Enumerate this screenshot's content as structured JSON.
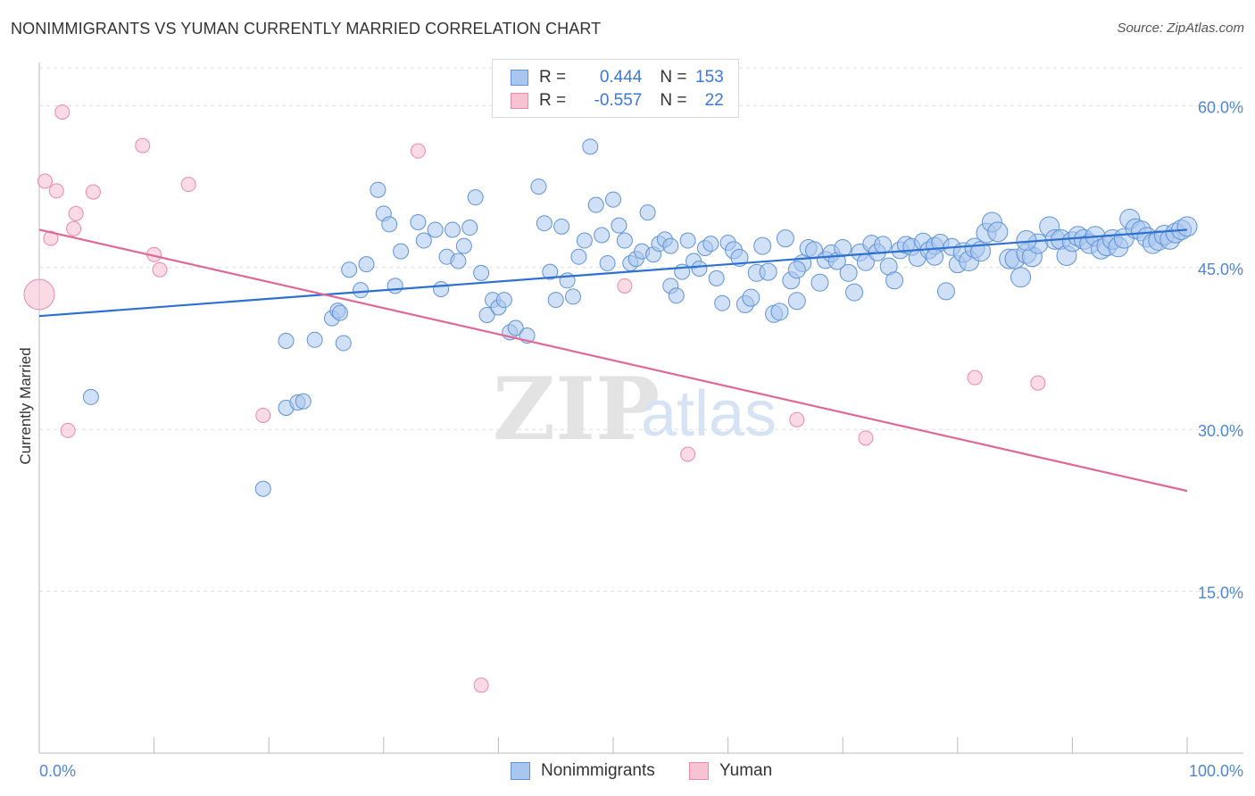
{
  "title": "NONIMMIGRANTS VS YUMAN CURRENTLY MARRIED CORRELATION CHART",
  "source": "Source: ZipAtlas.com",
  "watermark": {
    "zip": "ZIP",
    "atlas": "atlas"
  },
  "legend": {
    "rows": [
      {
        "r_label": "R = ",
        "r_value": "0.444",
        "n_label": "N = ",
        "n_value": "153"
      },
      {
        "r_label": "R = ",
        "r_value": "-0.557",
        "n_label": "N = ",
        "n_value": "22"
      }
    ]
  },
  "bottom_legend": [
    "Nonimmigrants",
    "Yuman"
  ],
  "colors": {
    "blue_fill": "#a9c7ee",
    "blue_stroke": "#5f93d8",
    "blue_line": "#2e70cf",
    "pink_fill": "#f7c3d3",
    "pink_stroke": "#e98aa8",
    "pink_line": "#e06894",
    "tick": "#4f86d6",
    "grid": "#dddddd"
  },
  "chart_data": {
    "type": "scatter",
    "title": "NONIMMIGRANTS VS YUMAN CURRENTLY MARRIED CORRELATION CHART",
    "xlabel": "",
    "ylabel": "Currently Married",
    "xlim": [
      0,
      100
    ],
    "ylim": [
      0,
      64
    ],
    "x_tick_labels": [
      "0.0%",
      "100.0%"
    ],
    "y_ticks": [
      15,
      30,
      45,
      60
    ],
    "y_tick_labels": [
      "15.0%",
      "30.0%",
      "45.0%",
      "60.0%"
    ],
    "grid": true,
    "series": [
      {
        "name": "Nonimmigrants",
        "r": 0.444,
        "n": 153,
        "trend": [
          [
            0,
            40.5
          ],
          [
            100,
            48.5
          ]
        ],
        "points": [
          [
            4.5,
            33.0
          ],
          [
            19.5,
            24.5
          ],
          [
            21.5,
            32.0
          ],
          [
            22.5,
            32.5
          ],
          [
            23.0,
            32.6
          ],
          [
            21.5,
            38.2
          ],
          [
            24.0,
            38.3
          ],
          [
            26.5,
            38.0
          ],
          [
            25.5,
            40.3
          ],
          [
            26.0,
            41.0
          ],
          [
            26.2,
            40.8
          ],
          [
            27.0,
            44.8
          ],
          [
            28.0,
            42.9
          ],
          [
            28.5,
            45.3
          ],
          [
            29.5,
            52.2
          ],
          [
            30.0,
            50.0
          ],
          [
            30.5,
            49.0
          ],
          [
            31.0,
            43.3
          ],
          [
            31.5,
            46.5
          ],
          [
            33.0,
            49.2
          ],
          [
            33.5,
            47.5
          ],
          [
            34.5,
            48.5
          ],
          [
            35.0,
            43.0
          ],
          [
            35.5,
            46.0
          ],
          [
            36.0,
            48.5
          ],
          [
            36.5,
            45.6
          ],
          [
            37.5,
            48.7
          ],
          [
            38.0,
            51.5
          ],
          [
            38.5,
            44.5
          ],
          [
            39.0,
            40.6
          ],
          [
            39.5,
            42.0
          ],
          [
            40.0,
            41.3
          ],
          [
            40.5,
            42.0
          ],
          [
            41.0,
            39.0
          ],
          [
            41.5,
            39.4
          ],
          [
            42.5,
            38.7
          ],
          [
            43.5,
            52.5
          ],
          [
            44.0,
            49.1
          ],
          [
            44.5,
            44.6
          ],
          [
            45.0,
            42.0
          ],
          [
            45.5,
            48.8
          ],
          [
            46.0,
            43.8
          ],
          [
            46.5,
            42.3
          ],
          [
            47.0,
            46.0
          ],
          [
            48.0,
            56.2
          ],
          [
            48.5,
            50.8
          ],
          [
            49.0,
            48.0
          ],
          [
            49.5,
            45.4
          ],
          [
            50.0,
            51.3
          ],
          [
            50.5,
            48.9
          ],
          [
            51.0,
            47.5
          ],
          [
            51.5,
            45.4
          ],
          [
            52.0,
            45.8
          ],
          [
            52.5,
            46.5
          ],
          [
            53.0,
            50.1
          ],
          [
            53.5,
            46.2
          ],
          [
            54.0,
            47.2
          ],
          [
            54.5,
            47.6
          ],
          [
            55.0,
            43.3
          ],
          [
            55.5,
            42.4
          ],
          [
            56.0,
            44.6
          ],
          [
            56.5,
            47.5
          ],
          [
            57.0,
            45.6
          ],
          [
            57.5,
            44.9
          ],
          [
            58.0,
            46.8
          ],
          [
            58.5,
            47.2
          ],
          [
            59.0,
            44.0
          ],
          [
            59.5,
            41.7
          ],
          [
            60.0,
            47.3
          ],
          [
            60.5,
            46.6
          ],
          [
            61.0,
            45.9
          ],
          [
            61.5,
            41.6
          ],
          [
            62.0,
            42.2
          ],
          [
            62.5,
            44.5
          ],
          [
            63.0,
            47.0
          ],
          [
            63.5,
            44.6
          ],
          [
            64.0,
            40.7
          ],
          [
            64.5,
            40.9
          ],
          [
            65.0,
            47.7
          ],
          [
            65.5,
            43.8
          ],
          [
            66.0,
            41.9
          ],
          [
            66.5,
            45.4
          ],
          [
            67.0,
            46.8
          ],
          [
            67.5,
            46.6
          ],
          [
            68.0,
            43.6
          ],
          [
            68.5,
            45.7
          ],
          [
            69.0,
            46.3
          ],
          [
            69.5,
            45.6
          ],
          [
            70.0,
            46.8
          ],
          [
            70.5,
            44.5
          ],
          [
            71.0,
            42.7
          ],
          [
            71.5,
            46.4
          ],
          [
            72.0,
            45.5
          ],
          [
            72.5,
            47.2
          ],
          [
            73.0,
            46.4
          ],
          [
            73.5,
            47.1
          ],
          [
            74.0,
            45.1
          ],
          [
            74.5,
            43.8
          ],
          [
            75.0,
            46.6
          ],
          [
            75.5,
            47.1
          ],
          [
            76.0,
            46.9
          ],
          [
            76.5,
            45.9
          ],
          [
            77.0,
            47.4
          ],
          [
            77.5,
            46.6
          ],
          [
            78.0,
            47.0
          ],
          [
            78.5,
            47.3
          ],
          [
            79.0,
            42.8
          ],
          [
            79.5,
            46.9
          ],
          [
            80.0,
            45.3
          ],
          [
            80.5,
            46.4
          ],
          [
            81.0,
            45.6
          ],
          [
            81.5,
            46.8
          ],
          [
            82.0,
            46.5
          ],
          [
            82.5,
            48.2
          ],
          [
            83.0,
            49.2
          ],
          [
            83.5,
            48.3
          ],
          [
            84.5,
            45.8
          ],
          [
            85.0,
            45.8
          ],
          [
            85.5,
            44.1
          ],
          [
            86.0,
            46.3
          ],
          [
            86.5,
            46.0
          ],
          [
            87.0,
            47.2
          ],
          [
            88.0,
            48.8
          ],
          [
            88.5,
            47.6
          ],
          [
            89.0,
            47.6
          ],
          [
            89.5,
            46.1
          ],
          [
            90.0,
            47.4
          ],
          [
            90.5,
            47.9
          ],
          [
            91.0,
            47.6
          ],
          [
            91.5,
            47.2
          ],
          [
            92.0,
            47.9
          ],
          [
            92.5,
            46.7
          ],
          [
            93.0,
            47.0
          ],
          [
            93.5,
            47.6
          ],
          [
            94.0,
            46.9
          ],
          [
            94.5,
            47.7
          ],
          [
            95.0,
            49.5
          ],
          [
            95.5,
            48.6
          ],
          [
            96.0,
            48.4
          ],
          [
            96.5,
            47.8
          ],
          [
            97.0,
            47.2
          ],
          [
            97.5,
            47.5
          ],
          [
            98.0,
            48.0
          ],
          [
            98.5,
            47.6
          ],
          [
            99.0,
            48.2
          ],
          [
            99.5,
            48.5
          ],
          [
            100.0,
            48.8
          ],
          [
            47.5,
            47.5
          ],
          [
            37.0,
            47.0
          ],
          [
            55.0,
            47.0
          ],
          [
            78.0,
            46.0
          ],
          [
            86.0,
            47.5
          ],
          [
            66.0,
            44.8
          ]
        ]
      },
      {
        "name": "Yuman",
        "r": -0.557,
        "n": 22,
        "trend": [
          [
            0,
            48.5
          ],
          [
            100,
            24.3
          ]
        ],
        "points": [
          [
            0.0,
            42.5
          ],
          [
            0.5,
            53.0
          ],
          [
            1.0,
            47.7
          ],
          [
            1.5,
            52.1
          ],
          [
            2.0,
            59.4
          ],
          [
            2.5,
            29.9
          ],
          [
            3.0,
            48.6
          ],
          [
            3.2,
            50.0
          ],
          [
            4.7,
            52.0
          ],
          [
            9.0,
            56.3
          ],
          [
            10.0,
            46.2
          ],
          [
            10.5,
            44.8
          ],
          [
            13.0,
            52.7
          ],
          [
            19.5,
            31.3
          ],
          [
            33.0,
            55.8
          ],
          [
            38.5,
            6.3
          ],
          [
            51.0,
            43.3
          ],
          [
            56.5,
            27.7
          ],
          [
            66.0,
            30.9
          ],
          [
            72.0,
            29.2
          ],
          [
            81.5,
            34.8
          ],
          [
            87.0,
            34.3
          ]
        ]
      }
    ]
  }
}
